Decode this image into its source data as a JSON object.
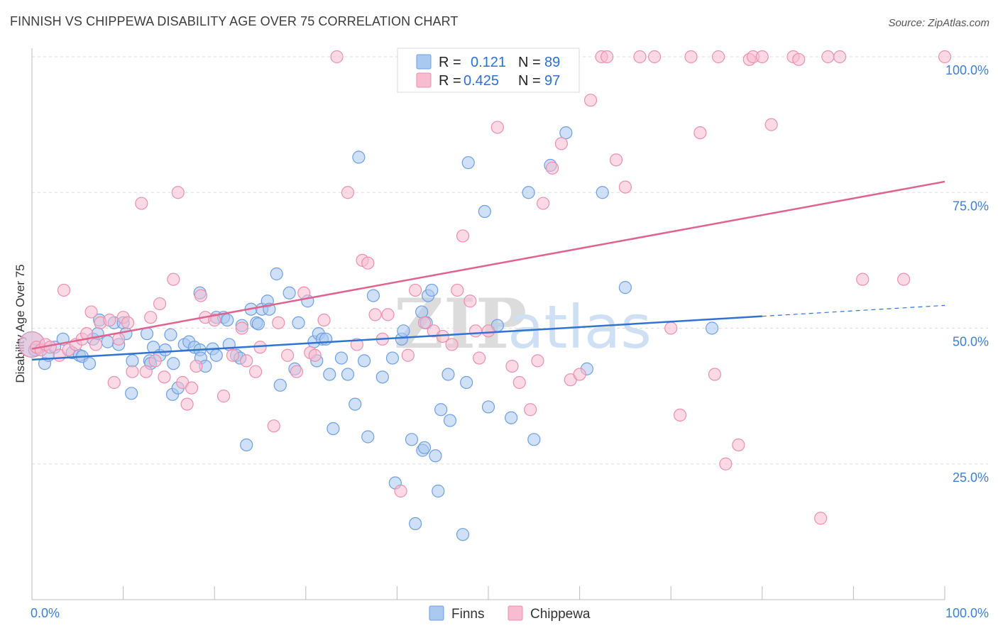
{
  "header": {
    "title": "FINNISH VS CHIPPEWA DISABILITY AGE OVER 75 CORRELATION CHART",
    "source": "Source: ZipAtlas.com"
  },
  "watermark": {
    "zip": "ZIP",
    "atlas": "atlas"
  },
  "colors": {
    "finns_fill": "#aac9f0",
    "finns_stroke": "#6d9fe0",
    "finns_line": "#2f74d0",
    "chippewa_fill": "#f7bcd0",
    "chippewa_stroke": "#eb8fae",
    "chippewa_line": "#e0638e",
    "grid": "#dddddd",
    "axis_label": "#3d7fd1"
  },
  "legend": {
    "rows": [
      {
        "r_label": "R =",
        "r_value": "0.121",
        "n_label": "N =",
        "n_value": "89"
      },
      {
        "r_label": "R =",
        "r_value": "0.425",
        "n_label": "N =",
        "n_value": "97"
      }
    ]
  },
  "bottom_legend": {
    "finns": "Finns",
    "chippewa": "Chippewa"
  },
  "chart_data": {
    "type": "scatter",
    "title": "FINNISH VS CHIPPEWA DISABILITY AGE OVER 75 CORRELATION CHART",
    "xlabel": "",
    "ylabel": "Disability Age Over 75",
    "xlim": [
      0,
      100
    ],
    "ylim": [
      0,
      100
    ],
    "x_tick_labels": [
      "0.0%",
      "100.0%"
    ],
    "y_ticks": [
      25,
      50,
      75,
      100
    ],
    "y_tick_labels": [
      "25.0%",
      "50.0%",
      "75.0%",
      "100.0%"
    ],
    "grid": true,
    "legend_position": "top-center",
    "series": [
      {
        "name": "Finns",
        "r": 0.121,
        "n": 89,
        "trend": {
          "x0": 0,
          "y0": 44.2,
          "x1": 80,
          "y1": 52.2,
          "dashed_to_x": 100,
          "dashed_to_y": 54.2
        },
        "points": [
          [
            0,
            47
          ],
          [
            0.3,
            46
          ],
          [
            1.4,
            43.5
          ],
          [
            1.8,
            45
          ],
          [
            2.5,
            46.5
          ],
          [
            3.4,
            48
          ],
          [
            4.4,
            45.5
          ],
          [
            5.2,
            45
          ],
          [
            5.5,
            44.8
          ],
          [
            6.3,
            43.5
          ],
          [
            6.7,
            48
          ],
          [
            7.2,
            49
          ],
          [
            7.4,
            51.5
          ],
          [
            8.3,
            47.5
          ],
          [
            9,
            51
          ],
          [
            9.5,
            47
          ],
          [
            10,
            51
          ],
          [
            10.3,
            49
          ],
          [
            10.9,
            38
          ],
          [
            11,
            44
          ],
          [
            12.6,
            49
          ],
          [
            12.9,
            44
          ],
          [
            13,
            43.5
          ],
          [
            13.3,
            46.5
          ],
          [
            14,
            45
          ],
          [
            14.6,
            46
          ],
          [
            15.2,
            48.8
          ],
          [
            15.4,
            37.8
          ],
          [
            15.5,
            43.5
          ],
          [
            16,
            39
          ],
          [
            16.7,
            47
          ],
          [
            17.2,
            47.5
          ],
          [
            17.8,
            46.5
          ],
          [
            18.4,
            46
          ],
          [
            18.4,
            56.5
          ],
          [
            18.5,
            44.5
          ],
          [
            19,
            43
          ],
          [
            19.8,
            46.2
          ],
          [
            20.2,
            45
          ],
          [
            20.2,
            52
          ],
          [
            21,
            52
          ],
          [
            21.4,
            51.5
          ],
          [
            21.6,
            47
          ],
          [
            22.4,
            45
          ],
          [
            22.8,
            44.5
          ],
          [
            23,
            50.5
          ],
          [
            23.5,
            28.5
          ],
          [
            24,
            53.5
          ],
          [
            24.6,
            51
          ],
          [
            24.8,
            50.8
          ],
          [
            25.2,
            53.5
          ],
          [
            25.8,
            55
          ],
          [
            26,
            53.5
          ],
          [
            26.8,
            60
          ],
          [
            27.2,
            39.5
          ],
          [
            28.2,
            56.5
          ],
          [
            28.8,
            42.5
          ],
          [
            29.2,
            51
          ],
          [
            30.2,
            55
          ],
          [
            30.9,
            47.5
          ],
          [
            31.2,
            44
          ],
          [
            31.4,
            49
          ],
          [
            31.8,
            48
          ],
          [
            32.2,
            48
          ],
          [
            32.6,
            41.5
          ],
          [
            33,
            31.5
          ],
          [
            33.9,
            44.5
          ],
          [
            34.6,
            41.5
          ],
          [
            35.4,
            36
          ],
          [
            35.8,
            81.5
          ],
          [
            36.4,
            44
          ],
          [
            36.8,
            30
          ],
          [
            37.4,
            56
          ],
          [
            38.4,
            41
          ],
          [
            39.5,
            44.5
          ],
          [
            39.8,
            21.5
          ],
          [
            40.5,
            48
          ],
          [
            40.7,
            49.5
          ],
          [
            41.6,
            29.5
          ],
          [
            42,
            14
          ],
          [
            42.7,
            53
          ],
          [
            42.8,
            27.5
          ],
          [
            43,
            28
          ],
          [
            43.2,
            51
          ],
          [
            43.4,
            56
          ],
          [
            43.8,
            57
          ],
          [
            44.2,
            26.5
          ],
          [
            44.5,
            20
          ],
          [
            44.8,
            35
          ],
          [
            45.6,
            41.5
          ],
          [
            45.8,
            33
          ],
          [
            47.2,
            12
          ],
          [
            47.6,
            40
          ],
          [
            47.8,
            80.5
          ],
          [
            49.6,
            71.5
          ],
          [
            50,
            35.5
          ],
          [
            51,
            50.5
          ],
          [
            52.5,
            33.5
          ],
          [
            54.4,
            75
          ],
          [
            55,
            29.5
          ],
          [
            56.8,
            80
          ],
          [
            58.5,
            86
          ],
          [
            60.8,
            42.5
          ],
          [
            62.5,
            75
          ],
          [
            65,
            57.5
          ],
          [
            74.5,
            50
          ]
        ]
      },
      {
        "name": "Chippewa",
        "r": 0.425,
        "n": 97,
        "trend": {
          "x0": 0,
          "y0": 46.2,
          "x1": 100,
          "y1": 77
        },
        "points": [
          [
            0,
            47
          ],
          [
            0.5,
            46.5
          ],
          [
            1,
            46
          ],
          [
            1.5,
            47
          ],
          [
            2,
            46.5
          ],
          [
            3,
            45
          ],
          [
            3.5,
            57
          ],
          [
            4,
            46
          ],
          [
            4.8,
            47
          ],
          [
            5.5,
            48
          ],
          [
            6,
            49
          ],
          [
            6.5,
            53
          ],
          [
            7,
            47
          ],
          [
            7.5,
            51
          ],
          [
            8.5,
            51.5
          ],
          [
            9,
            40
          ],
          [
            9.5,
            48
          ],
          [
            10,
            52
          ],
          [
            10.5,
            51
          ],
          [
            11,
            42
          ],
          [
            12,
            73
          ],
          [
            12.5,
            42
          ],
          [
            13,
            52
          ],
          [
            13.5,
            44
          ],
          [
            14,
            54.5
          ],
          [
            14.5,
            41
          ],
          [
            15.5,
            59
          ],
          [
            16,
            75
          ],
          [
            16.5,
            40
          ],
          [
            17,
            36
          ],
          [
            17.5,
            39
          ],
          [
            18,
            43
          ],
          [
            18.5,
            56
          ],
          [
            19,
            52
          ],
          [
            20,
            51.5
          ],
          [
            21,
            37.5
          ],
          [
            22,
            45
          ],
          [
            23,
            50
          ],
          [
            23.5,
            44
          ],
          [
            24.5,
            42
          ],
          [
            25,
            46.5
          ],
          [
            26.5,
            32
          ],
          [
            27,
            51
          ],
          [
            28,
            45
          ],
          [
            29,
            42
          ],
          [
            29.8,
            56.5
          ],
          [
            30.5,
            45.5
          ],
          [
            31,
            45
          ],
          [
            32,
            51.5
          ],
          [
            33.4,
            100
          ],
          [
            34.6,
            75
          ],
          [
            35.6,
            47
          ],
          [
            36.2,
            62.5
          ],
          [
            36.8,
            62
          ],
          [
            37.6,
            52.5
          ],
          [
            38.4,
            48
          ],
          [
            39,
            52.5
          ],
          [
            40.4,
            20
          ],
          [
            41.2,
            45
          ],
          [
            42,
            57
          ],
          [
            43,
            51
          ],
          [
            44,
            49.5
          ],
          [
            45,
            48.5
          ],
          [
            46,
            47
          ],
          [
            46.6,
            57
          ],
          [
            47.2,
            67
          ],
          [
            48,
            55
          ],
          [
            48.6,
            49.5
          ],
          [
            49,
            44.5
          ],
          [
            50,
            49.5
          ],
          [
            51,
            87
          ],
          [
            52.6,
            43
          ],
          [
            53.4,
            40
          ],
          [
            54.6,
            35
          ],
          [
            55.4,
            44
          ],
          [
            56,
            73
          ],
          [
            57,
            79.5
          ],
          [
            58,
            84
          ],
          [
            59,
            40.5
          ],
          [
            60,
            41.5
          ],
          [
            61.2,
            92
          ],
          [
            62.4,
            100
          ],
          [
            63,
            100
          ],
          [
            64,
            81
          ],
          [
            65,
            76
          ],
          [
            66.6,
            100
          ],
          [
            68.2,
            100
          ],
          [
            70,
            50
          ],
          [
            71,
            34
          ],
          [
            72.2,
            100
          ],
          [
            73.2,
            86
          ],
          [
            74.8,
            41.5
          ],
          [
            75.2,
            100
          ],
          [
            76,
            25
          ],
          [
            77.4,
            28.5
          ],
          [
            78.6,
            99.5
          ],
          [
            79,
            100
          ],
          [
            80,
            100
          ],
          [
            81,
            87.5
          ],
          [
            83.4,
            100
          ],
          [
            84,
            99.5
          ],
          [
            86.4,
            15
          ],
          [
            87.2,
            100
          ],
          [
            88.5,
            100
          ],
          [
            91,
            59
          ],
          [
            95.5,
            59
          ],
          [
            100,
            100
          ]
        ]
      }
    ]
  }
}
